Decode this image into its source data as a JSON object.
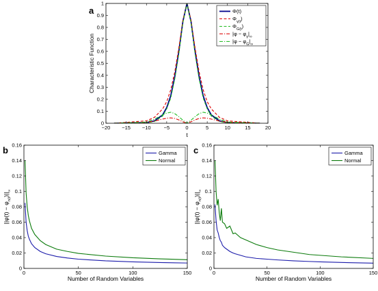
{
  "chart_data": [
    {
      "panel": "a",
      "type": "line",
      "title": "",
      "xlabel": "t",
      "ylabel": "Characteristic Function",
      "xlim": [
        -20,
        20
      ],
      "ylim": [
        0,
        1
      ],
      "xticks": [
        -20,
        -15,
        -10,
        -5,
        0,
        5,
        10,
        15,
        20
      ],
      "xtick_labels": [
        "−20",
        "−15",
        "−10",
        "−5",
        "0",
        "5",
        "10",
        "15",
        "20"
      ],
      "yticks": [
        0,
        0.1,
        0.2,
        0.3,
        0.4,
        0.5,
        0.6,
        0.7,
        0.8,
        0.9,
        1
      ],
      "ytick_labels": [
        "0",
        "0.1",
        "0.2",
        "0.3",
        "0.4",
        "0.5",
        "0.6",
        "0.7",
        "0.8",
        "0.9",
        "1"
      ],
      "grid": false,
      "legend_position": "top-right",
      "series": [
        {
          "name": "Φ(t)",
          "color": "#00008b",
          "style": "solid",
          "x": [
            -18,
            -10,
            -8,
            -6,
            -5,
            -4,
            -3,
            -2,
            -1,
            0,
            1,
            2,
            3,
            4,
            5,
            6,
            8,
            10,
            18
          ],
          "y": [
            0,
            0.005,
            0.02,
            0.07,
            0.13,
            0.23,
            0.39,
            0.6,
            0.85,
            1,
            0.85,
            0.6,
            0.39,
            0.23,
            0.13,
            0.07,
            0.02,
            0.005,
            0
          ]
        },
        {
          "name": "Φ_γ(t)",
          "color": "#dd0000",
          "style": "dashed",
          "x": [
            -18,
            -10,
            -8,
            -6,
            -5,
            -4,
            -3,
            -2,
            -1,
            0,
            1,
            2,
            3,
            4,
            5,
            6,
            8,
            10,
            18
          ],
          "y": [
            0,
            0.02,
            0.05,
            0.12,
            0.18,
            0.28,
            0.43,
            0.63,
            0.86,
            1,
            0.86,
            0.63,
            0.43,
            0.28,
            0.18,
            0.12,
            0.05,
            0.02,
            0
          ]
        },
        {
          "name": "Φ_G(t)",
          "color": "#22bb22",
          "style": "dashed",
          "x": [
            -18,
            -10,
            -8,
            -6,
            -5,
            -4,
            -3,
            -2,
            -1,
            0,
            1,
            2,
            3,
            4,
            5,
            6,
            8,
            10,
            18
          ],
          "y": [
            0,
            0.003,
            0.015,
            0.06,
            0.12,
            0.21,
            0.37,
            0.58,
            0.84,
            1,
            0.84,
            0.58,
            0.37,
            0.21,
            0.12,
            0.06,
            0.015,
            0.003,
            0
          ]
        },
        {
          "name": "|φ − φ_γ|_∞",
          "color": "#dd0000",
          "style": "dashdot",
          "x": [
            -18,
            -10,
            -8,
            -6,
            -5,
            -4,
            -3,
            -2,
            -1,
            0,
            1,
            2,
            3,
            4,
            5,
            6,
            8,
            10,
            18
          ],
          "y": [
            0,
            0.008,
            0.018,
            0.035,
            0.042,
            0.045,
            0.04,
            0.028,
            0.012,
            0,
            0.012,
            0.028,
            0.04,
            0.045,
            0.042,
            0.035,
            0.018,
            0.008,
            0
          ]
        },
        {
          "name": "|φ − φ_G|_∞",
          "color": "#22bb22",
          "style": "dashdot",
          "x": [
            -18,
            -10,
            -8,
            -6,
            -5,
            -4,
            -3,
            -2,
            -1,
            0,
            1,
            2,
            3,
            4,
            5,
            6,
            8,
            10,
            18
          ],
          "y": [
            0,
            0.01,
            0.035,
            0.07,
            0.085,
            0.092,
            0.08,
            0.055,
            0.025,
            0,
            0.025,
            0.055,
            0.08,
            0.092,
            0.085,
            0.07,
            0.035,
            0.01,
            0
          ]
        }
      ]
    },
    {
      "panel": "b",
      "type": "line",
      "title": "",
      "xlabel": "Number of Random Variables",
      "ylabel": "||φ(t) − φ_n(t)||_∞",
      "xlim": [
        0,
        150
      ],
      "ylim": [
        0,
        0.16
      ],
      "xticks": [
        0,
        50,
        100,
        150
      ],
      "xtick_labels": [
        "0",
        "50",
        "100",
        "150"
      ],
      "yticks": [
        0,
        0.02,
        0.04,
        0.06,
        0.08,
        0.1,
        0.12,
        0.14,
        0.16
      ],
      "ytick_labels": [
        "0",
        "0.02",
        "0.04",
        "0.06",
        "0.08",
        "0.1",
        "0.12",
        "0.14",
        "0.16"
      ],
      "grid": false,
      "legend_position": "top-right",
      "series": [
        {
          "name": "Gamma",
          "color": "#1a1aaa",
          "style": "solid",
          "x": [
            1,
            2,
            3,
            4,
            5,
            7,
            10,
            15,
            20,
            30,
            40,
            50,
            75,
            100,
            125,
            150
          ],
          "y": [
            0.085,
            0.06,
            0.049,
            0.042,
            0.038,
            0.032,
            0.027,
            0.022,
            0.019,
            0.0155,
            0.0135,
            0.012,
            0.0098,
            0.0085,
            0.0076,
            0.007
          ]
        },
        {
          "name": "Normal",
          "color": "#0a7a0a",
          "style": "solid",
          "x": [
            1,
            2,
            3,
            4,
            5,
            7,
            10,
            15,
            20,
            30,
            40,
            50,
            75,
            100,
            125,
            150
          ],
          "y": [
            0.14,
            0.098,
            0.08,
            0.069,
            0.062,
            0.052,
            0.044,
            0.036,
            0.031,
            0.025,
            0.022,
            0.0195,
            0.016,
            0.0138,
            0.0124,
            0.0113
          ]
        }
      ]
    },
    {
      "panel": "c",
      "type": "line",
      "title": "",
      "xlabel": "Number of Random Variables",
      "ylabel": "||φ(t) − φ_n(t)||_∞",
      "xlim": [
        0,
        150
      ],
      "ylim": [
        0,
        0.16
      ],
      "xticks": [
        0,
        50,
        100,
        150
      ],
      "xtick_labels": [
        "0",
        "50",
        "100",
        "150"
      ],
      "yticks": [
        0,
        0.02,
        0.04,
        0.06,
        0.08,
        0.1,
        0.12,
        0.14,
        0.16
      ],
      "ytick_labels": [
        "0",
        "0.02",
        "0.04",
        "0.06",
        "0.08",
        "0.1",
        "0.12",
        "0.14",
        "0.16"
      ],
      "grid": false,
      "legend_position": "top-right",
      "series": [
        {
          "name": "Gamma",
          "color": "#1a1aaa",
          "style": "solid",
          "x": [
            1,
            2,
            3,
            4,
            5,
            6,
            7,
            8,
            10,
            12,
            15,
            18,
            20,
            25,
            30,
            35,
            40,
            50,
            60,
            75,
            90,
            100,
            120,
            150
          ],
          "y": [
            0.083,
            0.062,
            0.05,
            0.046,
            0.04,
            0.036,
            0.034,
            0.03,
            0.027,
            0.025,
            0.022,
            0.02,
            0.019,
            0.017,
            0.015,
            0.014,
            0.013,
            0.012,
            0.011,
            0.0098,
            0.009,
            0.0085,
            0.0077,
            0.0068
          ]
        },
        {
          "name": "Normal",
          "color": "#0a7a0a",
          "style": "solid",
          "x": [
            1,
            2,
            3,
            4,
            5,
            6,
            7,
            8,
            10,
            12,
            15,
            18,
            20,
            25,
            30,
            35,
            40,
            50,
            60,
            75,
            90,
            100,
            120,
            150
          ],
          "y": [
            0.14,
            0.1,
            0.082,
            0.09,
            0.072,
            0.062,
            0.078,
            0.06,
            0.058,
            0.052,
            0.055,
            0.045,
            0.046,
            0.04,
            0.037,
            0.034,
            0.031,
            0.027,
            0.024,
            0.021,
            0.018,
            0.017,
            0.015,
            0.013
          ]
        }
      ]
    }
  ],
  "panel_labels": {
    "a": "a",
    "b": "b",
    "c": "c"
  }
}
